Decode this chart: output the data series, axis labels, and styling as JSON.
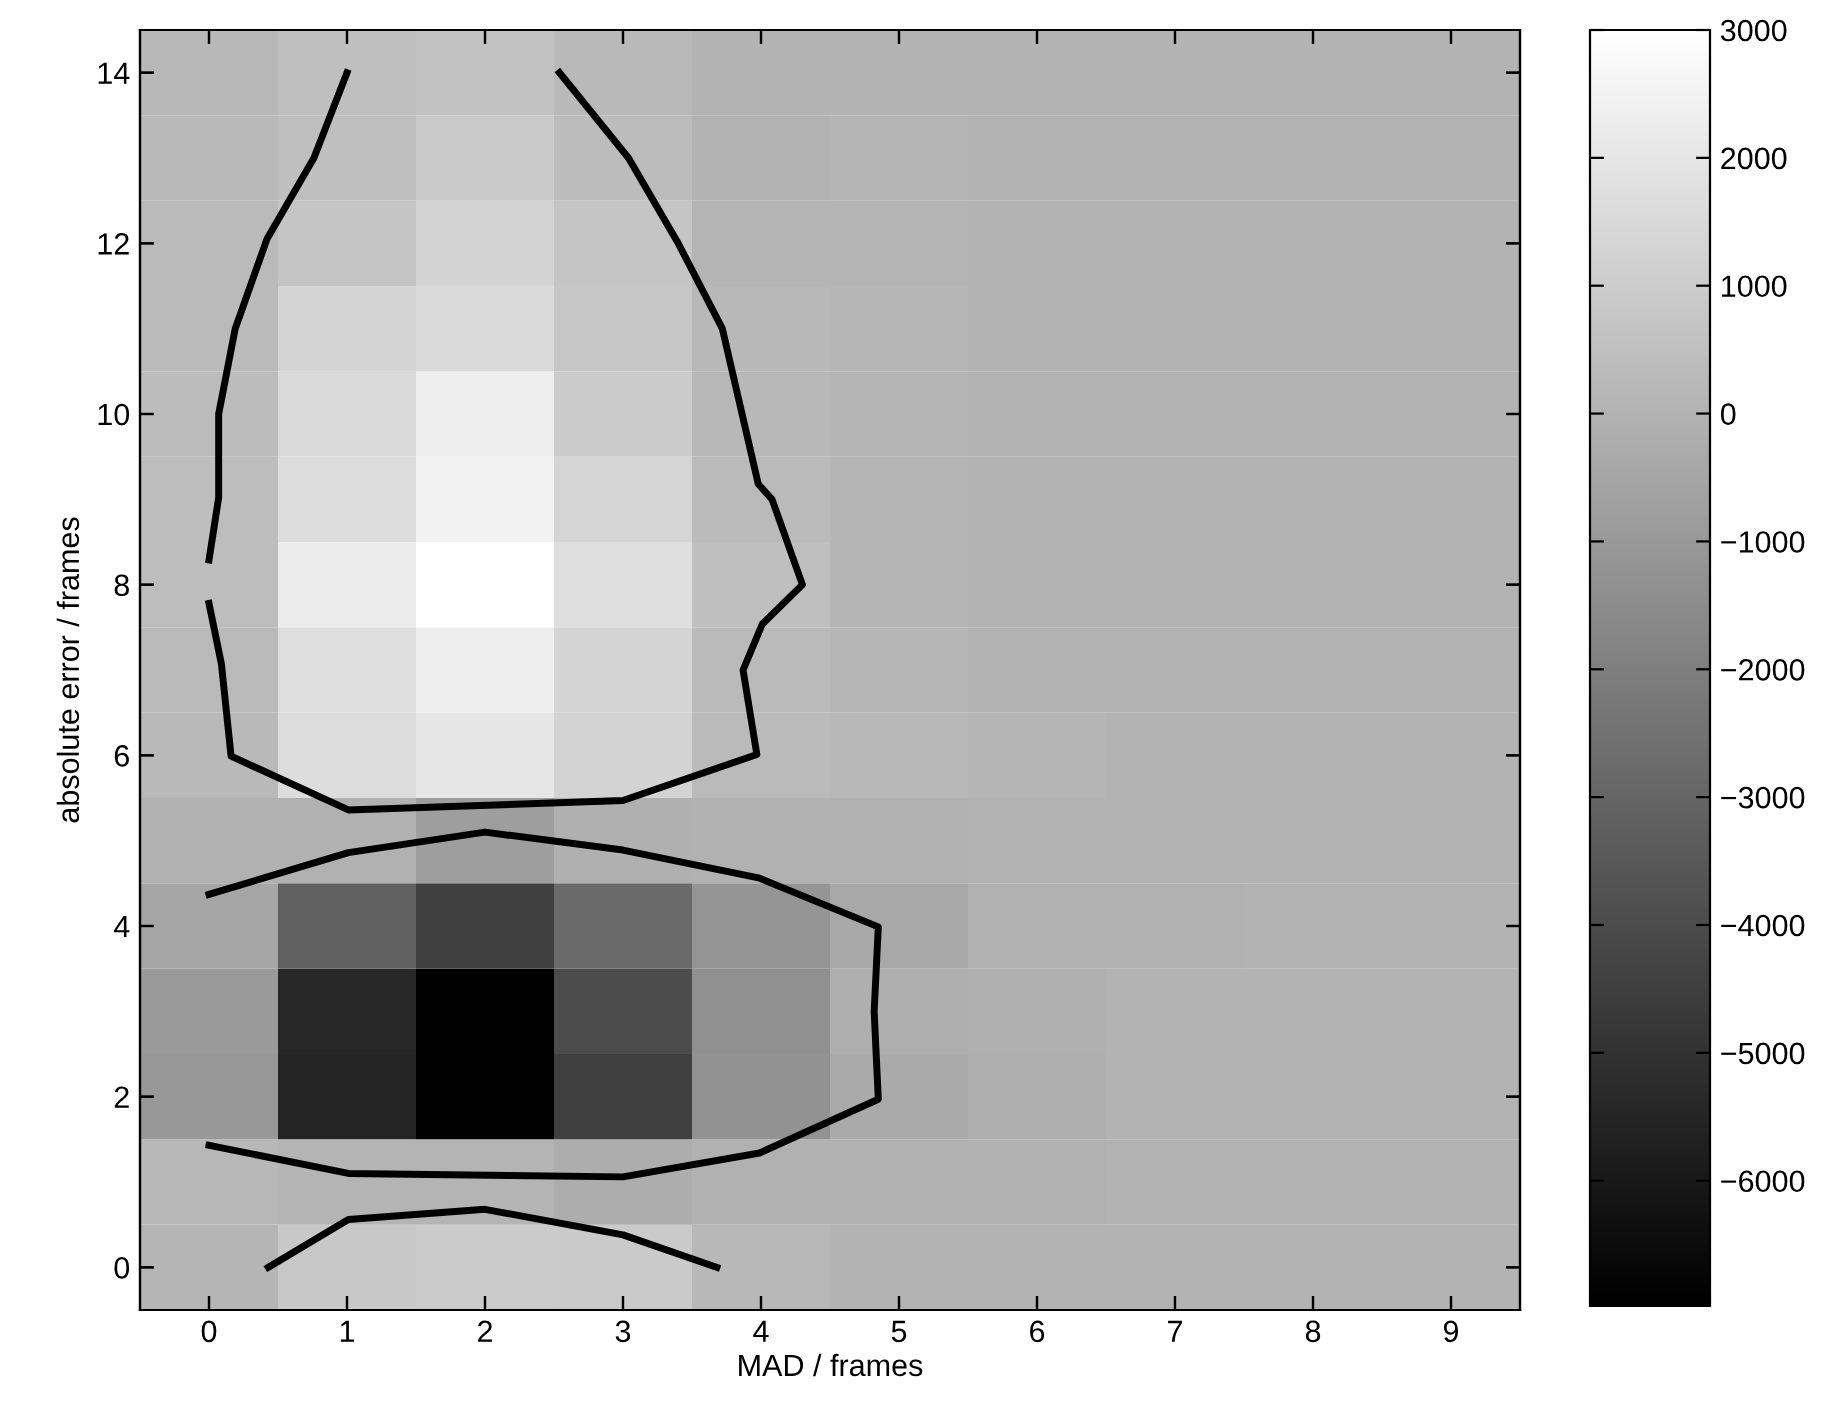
{
  "chart_data": [
    {
      "type": "heatmap",
      "xlabel": "MAD / frames",
      "ylabel": "absolute error / frames",
      "categories": [
        "0",
        "1",
        "2",
        "3",
        "4",
        "5",
        "6",
        "7",
        "8",
        "9"
      ],
      "y_categories": [
        "14",
        null,
        "12",
        null,
        "10",
        null,
        "8",
        null,
        "6",
        null,
        "4",
        null,
        "2",
        null,
        "0"
      ],
      "cells": [
        [
          200,
          500,
          600,
          250,
          0,
          0,
          0,
          0,
          0,
          0
        ],
        [
          250,
          500,
          900,
          350,
          0,
          100,
          0,
          0,
          0,
          0
        ],
        [
          300,
          700,
          1250,
          700,
          50,
          50,
          0,
          0,
          0,
          0
        ],
        [
          300,
          1300,
          1550,
          750,
          200,
          150,
          0,
          0,
          0,
          0
        ],
        [
          350,
          1550,
          2330,
          950,
          200,
          100,
          0,
          0,
          0,
          0
        ],
        [
          400,
          1650,
          2480,
          1350,
          300,
          100,
          0,
          0,
          0,
          0
        ],
        [
          400,
          2250,
          3000,
          1700,
          500,
          100,
          0,
          0,
          0,
          0
        ],
        [
          300,
          1700,
          2300,
          1300,
          300,
          150,
          0,
          0,
          0,
          0
        ],
        [
          250,
          1650,
          2000,
          1250,
          300,
          200,
          100,
          0,
          0,
          0
        ],
        [
          -50,
          -50,
          -800,
          -100,
          -50,
          -50,
          0,
          0,
          0,
          0
        ],
        [
          -500,
          -3230,
          -4480,
          -2830,
          -1150,
          -400,
          -50,
          -50,
          0,
          0
        ],
        [
          -950,
          -5450,
          -6980,
          -4000,
          -1350,
          -150,
          -100,
          0,
          0,
          0
        ],
        [
          -1050,
          -5550,
          -6980,
          -4480,
          -1250,
          -350,
          -150,
          0,
          0,
          0
        ],
        [
          200,
          50,
          50,
          -200,
          -50,
          -50,
          -50,
          0,
          0,
          0
        ],
        [
          100,
          850,
          950,
          900,
          200,
          0,
          0,
          0,
          0,
          0
        ]
      ],
      "clim": [
        -6980,
        3000
      ],
      "cticks": [
        {
          "value": -6000,
          "label": "−6000"
        },
        {
          "value": -5000,
          "label": "−5000"
        },
        {
          "value": -4000,
          "label": "−4000"
        },
        {
          "value": -3000,
          "label": "−3000"
        },
        {
          "value": -2000,
          "label": "−2000"
        },
        {
          "value": -1000,
          "label": "−1000"
        },
        0,
        1000,
        2000,
        3000
      ],
      "grid": false
    },
    {
      "type": "line",
      "xlim": [
        -0.5,
        9.5
      ],
      "ylim": [
        -0.5,
        14.5
      ],
      "xticks": [
        0,
        1,
        2,
        3,
        4,
        5,
        6,
        7,
        8,
        9
      ],
      "yticks": [
        0,
        2,
        4,
        6,
        8,
        10,
        12,
        14
      ],
      "tick_labels": false,
      "grid": false,
      "series": [
        {
          "color": "#000000",
          "x": [
            0,
            0.07,
            0.07,
            0.19,
            0.42,
            0.76,
            1.0
          ],
          "values": [
            8.29,
            9.02,
            10.0,
            11.0,
            12.05,
            13.0,
            14.0
          ]
        },
        {
          "color": "#000000",
          "x": [
            0,
            0.09,
            0.16,
            1.01,
            3.0,
            3.97,
            3.87,
            4.01,
            4.3,
            4.08,
            3.98,
            3.72,
            3.4,
            3.04,
            2.54
          ],
          "values": [
            7.78,
            7.07,
            5.99,
            5.36,
            5.47,
            6.01,
            7.0,
            7.54,
            8.0,
            9.0,
            9.18,
            11.0,
            12.0,
            13.0,
            14.0
          ]
        },
        {
          "color": "#000000",
          "x": [
            0,
            1.01,
            2.0,
            3.0,
            3.99,
            4.85,
            4.82,
            4.85,
            3.99,
            3.0,
            1.01,
            0
          ],
          "values": [
            4.37,
            4.86,
            5.1,
            4.89,
            4.56,
            3.99,
            3.0,
            1.97,
            1.34,
            1.06,
            1.1,
            1.43
          ]
        },
        {
          "color": "#000000",
          "x": [
            0.43,
            1.01,
            2.0,
            3.0,
            3.68
          ],
          "values": [
            0,
            0.56,
            0.68,
            0.38,
            0
          ]
        }
      ]
    }
  ]
}
